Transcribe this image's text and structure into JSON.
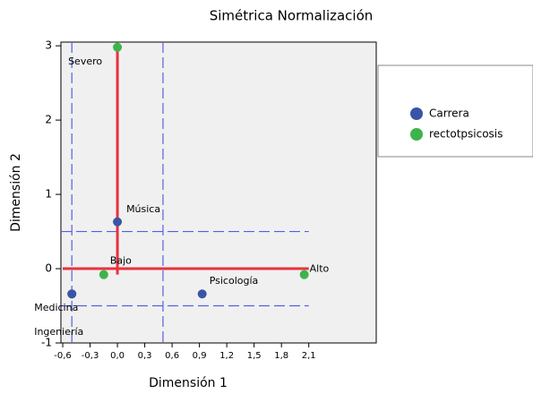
{
  "chart_data": {
    "type": "scatter",
    "title": "Simétrica Normalización",
    "xlabel": "Dimensión 1",
    "ylabel": "Dimensión 2",
    "xlim": [
      -0.62,
      2.84
    ],
    "ylim": [
      -1,
      3.05
    ],
    "xticks": [
      {
        "value": -0.6,
        "label": "-0,6"
      },
      {
        "value": -0.3,
        "label": "-0,3"
      },
      {
        "value": 0,
        "label": "0,0"
      },
      {
        "value": 0.3,
        "label": "0,3"
      },
      {
        "value": 0.6,
        "label": "0,6"
      },
      {
        "value": 0.9,
        "label": "0,9"
      },
      {
        "value": 1.2,
        "label": "1,2"
      },
      {
        "value": 1.5,
        "label": "1,5"
      },
      {
        "value": 1.8,
        "label": "1,8"
      },
      {
        "value": 2.1,
        "label": "2,1"
      }
    ],
    "yticks": [
      -1,
      0,
      1,
      2,
      3
    ],
    "series": [
      {
        "name": "Carrera",
        "color": "#3a55a5",
        "x": [
          0.0,
          -0.5,
          0.93,
          -0.5
        ],
        "values": [
          0.63,
          -0.34,
          -0.34,
          -0.34
        ],
        "labels": [
          "Música",
          "Medicina",
          "Psicología",
          "Ingeniería"
        ]
      },
      {
        "name": "rectotpsicosis",
        "color": "#3cb44b",
        "x": [
          0.0,
          -0.15,
          2.05
        ],
        "values": [
          2.98,
          -0.08,
          -0.08
        ],
        "labels": [
          "Severo",
          "Bajo",
          "Alto"
        ]
      }
    ],
    "dashed_lines": {
      "color": "#5560e0",
      "x": [
        -0.5,
        0.5
      ],
      "y": [
        0.5,
        -0.5
      ]
    },
    "red_lines": {
      "color": "#e8323c",
      "vertical": {
        "x": 0,
        "y": [
          -0.08,
          3
        ]
      },
      "horizontal": {
        "y": 0,
        "x": [
          -0.6,
          2.1
        ]
      }
    }
  }
}
